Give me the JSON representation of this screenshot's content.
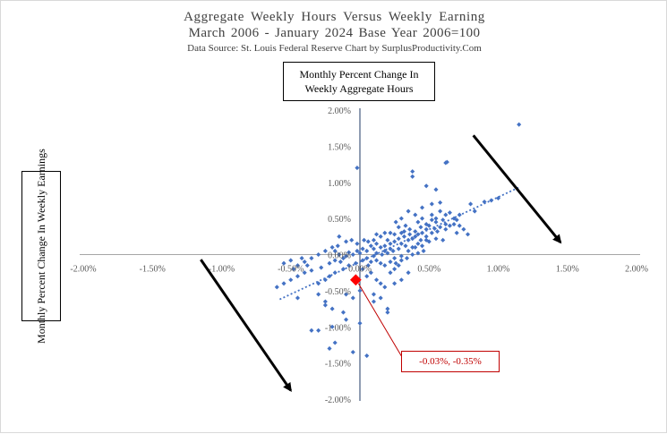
{
  "chart_data": {
    "type": "scatter",
    "title": "Aggregate Weekly Hours Versus Weekly Earning",
    "title_line2": "March 2006 - January 2024 Base Year 2006=100",
    "subtitle": "Data Source: St. Louis Federal Reserve   Chart by SurplusProductivity.Com",
    "ylabel": "Monthly Percent Change In Weekly Aggregate Hours",
    "xlabel": "Monthly Percent Change In Weekly Earnings",
    "xlim": [
      -2.0,
      2.0
    ],
    "ylim": [
      -2.0,
      2.0
    ],
    "x_ticks": [
      "-2.00%",
      "-1.50%",
      "-1.00%",
      "-0.50%",
      "0.00%",
      "0.50%",
      "1.00%",
      "1.50%",
      "2.00%"
    ],
    "y_ticks": [
      "2.00%",
      "1.50%",
      "1.00%",
      "0.50%",
      "0.00%",
      "-0.50%",
      "-1.00%",
      "-1.50%",
      "-2.00%"
    ],
    "grid": false,
    "marker_color": "#4472c4",
    "highlight_color": "#ff0000",
    "trendline": {
      "x0": -0.58,
      "y0": -0.62,
      "x1": 1.15,
      "y1": 0.93
    },
    "highlight_point": {
      "x": -0.03,
      "y": -0.35,
      "label": "-0.03%, -0.35%"
    },
    "arrows": [
      {
        "from": [
          -1.15,
          -0.07
        ],
        "to": [
          -0.5,
          -1.88
        ]
      },
      {
        "from": [
          0.82,
          1.65
        ],
        "to": [
          1.45,
          0.17
        ]
      }
    ],
    "points": [
      [
        1.15,
        1.8
      ],
      [
        -0.02,
        1.2
      ],
      [
        0.38,
        1.15
      ],
      [
        0.38,
        1.08
      ],
      [
        0.63,
        1.28
      ],
      [
        0.62,
        1.27
      ],
      [
        0.48,
        0.95
      ],
      [
        0.95,
        0.75
      ],
      [
        1.0,
        0.78
      ],
      [
        0.9,
        0.73
      ],
      [
        0.8,
        0.7
      ],
      [
        0.83,
        0.6
      ],
      [
        0.55,
        0.9
      ],
      [
        0.58,
        0.72
      ],
      [
        0.52,
        0.7
      ],
      [
        0.45,
        0.65
      ],
      [
        0.4,
        0.55
      ],
      [
        0.35,
        0.6
      ],
      [
        0.3,
        0.5
      ],
      [
        0.62,
        0.55
      ],
      [
        0.65,
        0.58
      ],
      [
        0.68,
        0.5
      ],
      [
        0.7,
        0.48
      ],
      [
        0.72,
        0.4
      ],
      [
        0.75,
        0.35
      ],
      [
        0.78,
        0.28
      ],
      [
        0.6,
        0.48
      ],
      [
        0.55,
        0.45
      ],
      [
        0.5,
        0.4
      ],
      [
        0.48,
        0.35
      ],
      [
        0.45,
        0.3
      ],
      [
        0.42,
        0.28
      ],
      [
        0.4,
        0.25
      ],
      [
        0.38,
        0.22
      ],
      [
        0.35,
        0.2
      ],
      [
        0.32,
        0.25
      ],
      [
        0.3,
        0.3
      ],
      [
        0.28,
        0.22
      ],
      [
        0.25,
        0.18
      ],
      [
        0.22,
        0.15
      ],
      [
        0.2,
        0.2
      ],
      [
        0.18,
        0.12
      ],
      [
        0.15,
        0.1
      ],
      [
        0.12,
        0.15
      ],
      [
        0.1,
        0.08
      ],
      [
        0.08,
        0.12
      ],
      [
        0.05,
        0.05
      ],
      [
        0.02,
        0.08
      ],
      [
        0.0,
        0.02
      ],
      [
        -0.02,
        0.05
      ],
      [
        -0.05,
        0.0
      ],
      [
        -0.08,
        0.03
      ],
      [
        -0.1,
        -0.02
      ],
      [
        0.52,
        0.3
      ],
      [
        0.56,
        0.32
      ],
      [
        0.58,
        0.38
      ],
      [
        0.62,
        0.42
      ],
      [
        0.65,
        0.4
      ],
      [
        0.7,
        0.3
      ],
      [
        0.36,
        0.35
      ],
      [
        0.33,
        0.4
      ],
      [
        0.28,
        0.38
      ],
      [
        0.26,
        0.45
      ],
      [
        0.22,
        0.3
      ],
      [
        0.18,
        0.3
      ],
      [
        0.15,
        0.25
      ],
      [
        0.12,
        0.28
      ],
      [
        0.1,
        0.2
      ],
      [
        0.06,
        0.18
      ],
      [
        0.03,
        0.2
      ],
      [
        -0.02,
        0.15
      ],
      [
        -0.06,
        0.2
      ],
      [
        -0.1,
        0.18
      ],
      [
        -0.15,
        0.25
      ],
      [
        -0.2,
        0.1
      ],
      [
        -0.18,
        0.05
      ],
      [
        -0.15,
        0.0
      ],
      [
        -0.12,
        -0.05
      ],
      [
        0.05,
        -0.05
      ],
      [
        0.08,
        -0.1
      ],
      [
        0.12,
        -0.08
      ],
      [
        0.15,
        -0.12
      ],
      [
        0.18,
        -0.15
      ],
      [
        0.22,
        -0.1
      ],
      [
        0.25,
        -0.05
      ],
      [
        0.3,
        -0.02
      ],
      [
        0.35,
        0.05
      ],
      [
        0.4,
        0.1
      ],
      [
        0.45,
        0.12
      ],
      [
        0.48,
        0.2
      ],
      [
        0.5,
        0.18
      ],
      [
        0.42,
        0.15
      ],
      [
        0.38,
        0.1
      ],
      [
        0.33,
        0.12
      ],
      [
        0.28,
        0.08
      ],
      [
        0.24,
        0.05
      ],
      [
        0.2,
        0.02
      ],
      [
        0.16,
        0.0
      ],
      [
        0.1,
        -0.02
      ],
      [
        0.02,
        -0.08
      ],
      [
        -0.03,
        -0.12
      ],
      [
        -0.08,
        -0.15
      ],
      [
        -0.12,
        -0.2
      ],
      [
        -0.18,
        -0.25
      ],
      [
        -0.22,
        -0.3
      ],
      [
        -0.25,
        -0.35
      ],
      [
        -0.3,
        -0.4
      ],
      [
        -0.35,
        -0.22
      ],
      [
        -0.4,
        -0.25
      ],
      [
        -0.45,
        -0.3
      ],
      [
        -0.5,
        -0.35
      ],
      [
        -0.55,
        -0.4
      ],
      [
        -0.6,
        -0.45
      ],
      [
        -0.45,
        -0.6
      ],
      [
        -0.3,
        -0.55
      ],
      [
        -0.25,
        -0.7
      ],
      [
        -0.2,
        -0.75
      ],
      [
        0.02,
        -0.2
      ],
      [
        0.05,
        -0.3
      ],
      [
        0.08,
        -0.25
      ],
      [
        0.12,
        -0.35
      ],
      [
        0.15,
        -0.4
      ],
      [
        0.18,
        -0.45
      ],
      [
        0.22,
        -0.25
      ],
      [
        0.25,
        -0.2
      ],
      [
        0.28,
        -0.15
      ],
      [
        0.1,
        -0.55
      ],
      [
        0.15,
        -0.6
      ],
      [
        0.2,
        -0.75
      ],
      [
        0.0,
        -0.5
      ],
      [
        -0.05,
        -0.6
      ],
      [
        -0.1,
        -0.55
      ],
      [
        -0.35,
        -0.05
      ],
      [
        -0.4,
        -0.1
      ],
      [
        -0.45,
        -0.15
      ],
      [
        -0.5,
        -0.08
      ],
      [
        -0.55,
        -0.12
      ],
      [
        -0.25,
        0.05
      ],
      [
        -0.3,
        0.0
      ],
      [
        -0.18,
        -0.08
      ],
      [
        -0.22,
        -0.12
      ],
      [
        -0.28,
        -0.18
      ],
      [
        0.55,
        0.5
      ],
      [
        0.52,
        0.55
      ],
      [
        0.45,
        0.5
      ],
      [
        0.42,
        0.45
      ],
      [
        0.58,
        0.6
      ],
      [
        0.62,
        0.35
      ],
      [
        0.68,
        0.42
      ],
      [
        0.72,
        0.55
      ],
      [
        0.6,
        0.2
      ],
      [
        0.55,
        0.22
      ],
      [
        0.48,
        0.25
      ],
      [
        0.44,
        0.2
      ],
      [
        -0.2,
        -1.0
      ],
      [
        -0.18,
        -1.22
      ],
      [
        -0.22,
        -1.3
      ],
      [
        -0.1,
        -0.9
      ],
      [
        -0.12,
        -0.8
      ],
      [
        0.0,
        -0.95
      ],
      [
        -0.05,
        -1.35
      ],
      [
        0.05,
        -1.4
      ],
      [
        -0.35,
        -1.05
      ],
      [
        -0.3,
        -1.05
      ],
      [
        -0.25,
        -0.65
      ],
      [
        0.1,
        -0.65
      ],
      [
        0.2,
        -0.8
      ],
      [
        0.25,
        -0.4
      ],
      [
        0.3,
        -0.35
      ],
      [
        0.35,
        -0.25
      ],
      [
        0.3,
        0.15
      ],
      [
        0.25,
        0.28
      ],
      [
        0.32,
        0.32
      ],
      [
        0.36,
        0.28
      ],
      [
        0.4,
        0.32
      ],
      [
        0.44,
        0.38
      ],
      [
        0.48,
        0.42
      ],
      [
        0.52,
        0.48
      ],
      [
        0.54,
        0.36
      ],
      [
        0.46,
        0.05
      ],
      [
        0.42,
        0.02
      ],
      [
        0.38,
        0.0
      ],
      [
        0.34,
        -0.05
      ],
      [
        0.3,
        -0.08
      ],
      [
        0.26,
        -0.12
      ],
      [
        -0.42,
        -0.05
      ],
      [
        -0.38,
        -0.15
      ],
      [
        -0.48,
        -0.2
      ],
      [
        -0.16,
        0.12
      ],
      [
        -0.14,
        -0.1
      ],
      [
        0.06,
        -0.15
      ],
      [
        0.12,
        0.02
      ],
      [
        0.18,
        0.05
      ],
      [
        0.22,
        0.08
      ]
    ]
  }
}
